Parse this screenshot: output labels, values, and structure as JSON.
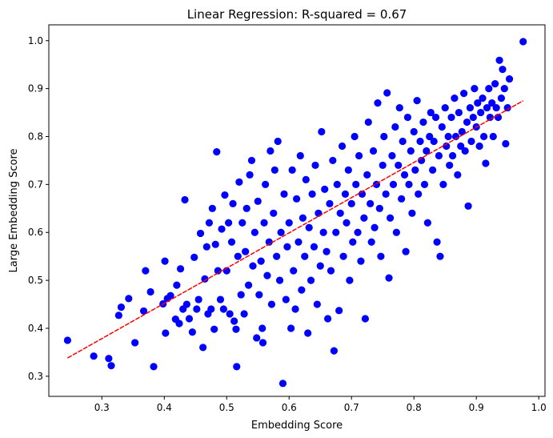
{
  "chart_data": {
    "type": "scatter",
    "title": "Linear Regression: R-squared = 0.67",
    "xlabel": "Embedding Score",
    "ylabel": "Large Embedding Score",
    "xlim": [
      0.215,
      1.01
    ],
    "ylim": [
      0.258,
      1.033
    ],
    "xticks": [
      "0.3",
      "0.4",
      "0.5",
      "0.6",
      "0.7",
      "0.8",
      "0.9",
      "1.0"
    ],
    "yticks": [
      "0.3",
      "0.4",
      "0.5",
      "0.6",
      "0.7",
      "0.8",
      "0.9",
      "1.0"
    ],
    "grid": false,
    "legend": "none",
    "point_color": "#0000ff",
    "line_color": "#ff0000",
    "regression": {
      "slope": 0.735,
      "intercept": 0.158,
      "x_start": 0.245,
      "x_end": 0.975,
      "style": "dashed"
    },
    "series": [
      {
        "values": [
          [
            0.245,
            0.375
          ],
          [
            0.287,
            0.342
          ],
          [
            0.311,
            0.337
          ],
          [
            0.315,
            0.322
          ],
          [
            0.327,
            0.427
          ],
          [
            0.331,
            0.444
          ],
          [
            0.343,
            0.462
          ],
          [
            0.353,
            0.37
          ],
          [
            0.367,
            0.436
          ],
          [
            0.37,
            0.52
          ],
          [
            0.378,
            0.476
          ],
          [
            0.383,
            0.32
          ],
          [
            0.398,
            0.451
          ],
          [
            0.401,
            0.54
          ],
          [
            0.402,
            0.39
          ],
          [
            0.405,
            0.462
          ],
          [
            0.41,
            0.468
          ],
          [
            0.418,
            0.419
          ],
          [
            0.42,
            0.49
          ],
          [
            0.424,
            0.41
          ],
          [
            0.426,
            0.524
          ],
          [
            0.43,
            0.44
          ],
          [
            0.433,
            0.668
          ],
          [
            0.436,
            0.45
          ],
          [
            0.44,
            0.42
          ],
          [
            0.445,
            0.392
          ],
          [
            0.448,
            0.548
          ],
          [
            0.452,
            0.44
          ],
          [
            0.455,
            0.46
          ],
          [
            0.458,
            0.598
          ],
          [
            0.462,
            0.36
          ],
          [
            0.465,
            0.503
          ],
          [
            0.468,
            0.57
          ],
          [
            0.47,
            0.43
          ],
          [
            0.472,
            0.62
          ],
          [
            0.475,
            0.44
          ],
          [
            0.477,
            0.65
          ],
          [
            0.48,
            0.398
          ],
          [
            0.482,
            0.575
          ],
          [
            0.484,
            0.768
          ],
          [
            0.486,
            0.52
          ],
          [
            0.49,
            0.46
          ],
          [
            0.492,
            0.607
          ],
          [
            0.495,
            0.44
          ],
          [
            0.497,
            0.678
          ],
          [
            0.5,
            0.52
          ],
          [
            0.503,
            0.62
          ],
          [
            0.505,
            0.43
          ],
          [
            0.508,
            0.58
          ],
          [
            0.51,
            0.66
          ],
          [
            0.512,
            0.415
          ],
          [
            0.515,
            0.398
          ],
          [
            0.516,
            0.32
          ],
          [
            0.518,
            0.55
          ],
          [
            0.52,
            0.705
          ],
          [
            0.523,
            0.47
          ],
          [
            0.525,
            0.62
          ],
          [
            0.528,
            0.43
          ],
          [
            0.53,
            0.56
          ],
          [
            0.532,
            0.65
          ],
          [
            0.535,
            0.49
          ],
          [
            0.537,
            0.72
          ],
          [
            0.54,
            0.75
          ],
          [
            0.542,
            0.53
          ],
          [
            0.545,
            0.6
          ],
          [
            0.548,
            0.38
          ],
          [
            0.55,
            0.665
          ],
          [
            0.552,
            0.47
          ],
          [
            0.555,
            0.54
          ],
          [
            0.557,
            0.4
          ],
          [
            0.558,
            0.37
          ],
          [
            0.56,
            0.62
          ],
          [
            0.562,
            0.7
          ],
          [
            0.565,
            0.51
          ],
          [
            0.568,
            0.58
          ],
          [
            0.57,
            0.77
          ],
          [
            0.572,
            0.45
          ],
          [
            0.575,
            0.64
          ],
          [
            0.577,
            0.73
          ],
          [
            0.58,
            0.55
          ],
          [
            0.582,
            0.79
          ],
          [
            0.585,
            0.5
          ],
          [
            0.587,
            0.6
          ],
          [
            0.59,
            0.285
          ],
          [
            0.592,
            0.68
          ],
          [
            0.595,
            0.46
          ],
          [
            0.597,
            0.57
          ],
          [
            0.6,
            0.62
          ],
          [
            0.603,
            0.4
          ],
          [
            0.605,
            0.73
          ],
          [
            0.607,
            0.52
          ],
          [
            0.61,
            0.44
          ],
          [
            0.612,
            0.67
          ],
          [
            0.615,
            0.58
          ],
          [
            0.618,
            0.76
          ],
          [
            0.62,
            0.48
          ],
          [
            0.622,
            0.63
          ],
          [
            0.625,
            0.55
          ],
          [
            0.627,
            0.71
          ],
          [
            0.63,
            0.39
          ],
          [
            0.632,
            0.61
          ],
          [
            0.635,
            0.5
          ],
          [
            0.637,
            0.68
          ],
          [
            0.64,
            0.57
          ],
          [
            0.642,
            0.74
          ],
          [
            0.645,
            0.45
          ],
          [
            0.647,
            0.64
          ],
          [
            0.65,
            0.53
          ],
          [
            0.652,
            0.81
          ],
          [
            0.655,
            0.6
          ],
          [
            0.657,
            0.69
          ],
          [
            0.66,
            0.56
          ],
          [
            0.662,
            0.42
          ],
          [
            0.665,
            0.66
          ],
          [
            0.667,
            0.52
          ],
          [
            0.67,
            0.75
          ],
          [
            0.672,
            0.353
          ],
          [
            0.675,
            0.6
          ],
          [
            0.677,
            0.7
          ],
          [
            0.68,
            0.437
          ],
          [
            0.682,
            0.64
          ],
          [
            0.685,
            0.78
          ],
          [
            0.687,
            0.55
          ],
          [
            0.69,
            0.68
          ],
          [
            0.692,
            0.62
          ],
          [
            0.695,
            0.73
          ],
          [
            0.697,
            0.5
          ],
          [
            0.7,
            0.66
          ],
          [
            0.702,
            0.58
          ],
          [
            0.705,
            0.8
          ],
          [
            0.707,
            0.7
          ],
          [
            0.71,
            0.6
          ],
          [
            0.712,
            0.76
          ],
          [
            0.715,
            0.54
          ],
          [
            0.717,
            0.68
          ],
          [
            0.72,
            0.63
          ],
          [
            0.722,
            0.42
          ],
          [
            0.725,
            0.72
          ],
          [
            0.727,
            0.83
          ],
          [
            0.73,
            0.66
          ],
          [
            0.732,
            0.58
          ],
          [
            0.735,
            0.77
          ],
          [
            0.737,
            0.61
          ],
          [
            0.74,
            0.7
          ],
          [
            0.742,
            0.87
          ],
          [
            0.745,
            0.65
          ],
          [
            0.747,
            0.55
          ],
          [
            0.75,
            0.74
          ],
          [
            0.752,
            0.8
          ],
          [
            0.755,
            0.68
          ],
          [
            0.757,
            0.891
          ],
          [
            0.76,
            0.505
          ],
          [
            0.762,
            0.63
          ],
          [
            0.765,
            0.76
          ],
          [
            0.767,
            0.7
          ],
          [
            0.77,
            0.82
          ],
          [
            0.772,
            0.6
          ],
          [
            0.775,
            0.74
          ],
          [
            0.777,
            0.86
          ],
          [
            0.78,
            0.67
          ],
          [
            0.782,
            0.79
          ],
          [
            0.785,
            0.72
          ],
          [
            0.787,
            0.56
          ],
          [
            0.79,
            0.84
          ],
          [
            0.792,
            0.7
          ],
          [
            0.795,
            0.77
          ],
          [
            0.797,
            0.64
          ],
          [
            0.8,
            0.81
          ],
          [
            0.802,
            0.73
          ],
          [
            0.805,
            0.875
          ],
          [
            0.807,
            0.68
          ],
          [
            0.81,
            0.79
          ],
          [
            0.812,
            0.75
          ],
          [
            0.815,
            0.83
          ],
          [
            0.817,
            0.7
          ],
          [
            0.82,
            0.77
          ],
          [
            0.822,
            0.62
          ],
          [
            0.825,
            0.8
          ],
          [
            0.827,
            0.85
          ],
          [
            0.83,
            0.73
          ],
          [
            0.832,
            0.79
          ],
          [
            0.835,
            0.84
          ],
          [
            0.837,
            0.58
          ],
          [
            0.84,
            0.76
          ],
          [
            0.842,
            0.55
          ],
          [
            0.845,
            0.82
          ],
          [
            0.847,
            0.7
          ],
          [
            0.85,
            0.86
          ],
          [
            0.852,
            0.78
          ],
          [
            0.855,
            0.8
          ],
          [
            0.857,
            0.74
          ],
          [
            0.86,
            0.84
          ],
          [
            0.862,
            0.76
          ],
          [
            0.865,
            0.88
          ],
          [
            0.867,
            0.8
          ],
          [
            0.87,
            0.72
          ],
          [
            0.872,
            0.85
          ],
          [
            0.875,
            0.78
          ],
          [
            0.877,
            0.81
          ],
          [
            0.88,
            0.89
          ],
          [
            0.882,
            0.77
          ],
          [
            0.885,
            0.83
          ],
          [
            0.887,
            0.655
          ],
          [
            0.89,
            0.86
          ],
          [
            0.892,
            0.79
          ],
          [
            0.895,
            0.84
          ],
          [
            0.897,
            0.9
          ],
          [
            0.9,
            0.82
          ],
          [
            0.902,
            0.87
          ],
          [
            0.905,
            0.78
          ],
          [
            0.907,
            0.85
          ],
          [
            0.91,
            0.88
          ],
          [
            0.912,
            0.8
          ],
          [
            0.915,
            0.744
          ],
          [
            0.917,
            0.86
          ],
          [
            0.92,
            0.9
          ],
          [
            0.922,
            0.84
          ],
          [
            0.925,
            0.87
          ],
          [
            0.927,
            0.8
          ],
          [
            0.93,
            0.91
          ],
          [
            0.932,
            0.86
          ],
          [
            0.935,
            0.84
          ],
          [
            0.937,
            0.959
          ],
          [
            0.94,
            0.88
          ],
          [
            0.942,
            0.94
          ],
          [
            0.945,
            0.9
          ],
          [
            0.947,
            0.785
          ],
          [
            0.95,
            0.86
          ],
          [
            0.953,
            0.92
          ],
          [
            0.975,
            0.998
          ]
        ]
      }
    ]
  }
}
